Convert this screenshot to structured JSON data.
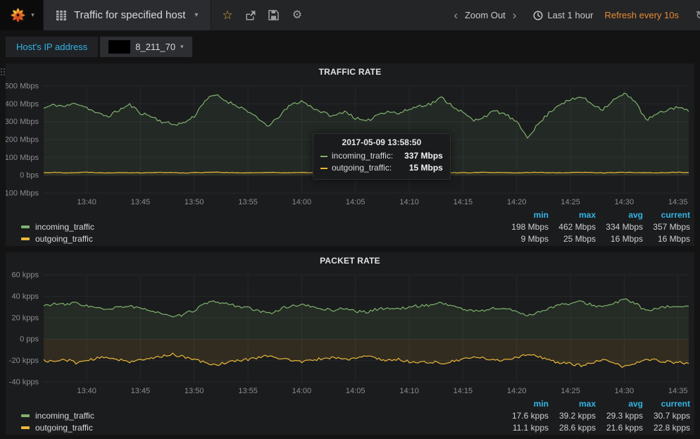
{
  "navbar": {
    "dashboard_title": "Traffic for specified host",
    "zoom_out": "Zoom Out",
    "time_range": "Last 1 hour",
    "refresh": "Refresh every 10s"
  },
  "variables": {
    "label": "Host's IP address",
    "value": "8_211_70"
  },
  "tooltip": {
    "time": "2017-05-09 13:58:50",
    "rows": [
      {
        "name": "incoming_traffic:",
        "value": "337 Mbps",
        "color": "#7eb26d"
      },
      {
        "name": "outgoing_traffic:",
        "value": "15 Mbps",
        "color": "#eab839"
      }
    ]
  },
  "colors": {
    "green": "#7eb26d",
    "yellow": "#eab839",
    "cyan": "#33b5e5",
    "orange": "#e78a32"
  },
  "chart_data": [
    {
      "type": "line",
      "title": "TRAFFIC RATE",
      "ylabel": "",
      "xlabel": "",
      "x_start": "13:36",
      "x_end": "14:36",
      "x_minutes_span": 60,
      "x_tick_minutes": [
        4,
        9,
        14,
        19,
        24,
        29,
        34,
        39,
        44,
        49,
        54,
        59
      ],
      "x_tick_labels": [
        "13:40",
        "13:45",
        "13:50",
        "13:55",
        "14:00",
        "14:05",
        "14:10",
        "14:15",
        "14:20",
        "14:25",
        "14:30",
        "14:35"
      ],
      "ylim": [
        -100,
        500
      ],
      "y_ticks": [
        500,
        400,
        300,
        200,
        100,
        0,
        -100
      ],
      "y_tick_labels": [
        "500 Mbps",
        "400 Mbps",
        "300 Mbps",
        "200 Mbps",
        "100 Mbps",
        "0 bps",
        "-100 Mbps"
      ],
      "grid": true,
      "series": [
        {
          "name": "incoming_traffic",
          "color": "#7eb26d",
          "fill_opacity": 0.09,
          "noise_amp": 9,
          "noise_seed": 11,
          "values": [
            375,
            395,
            385,
            405,
            380,
            345,
            330,
            365,
            395,
            350,
            330,
            300,
            285,
            292,
            330,
            420,
            450,
            415,
            390,
            360,
            310,
            275,
            337,
            395,
            415,
            380,
            350,
            330,
            360,
            320,
            298,
            340,
            360,
            345,
            370,
            390,
            400,
            435,
            390,
            350,
            305,
            330,
            360,
            340,
            295,
            215,
            285,
            350,
            400,
            420,
            440,
            400,
            370,
            420,
            455,
            420,
            308,
            340,
            365,
            385,
            357
          ]
        },
        {
          "name": "outgoing_traffic",
          "color": "#eab839",
          "fill_opacity": 0.06,
          "noise_amp": 1.6,
          "noise_seed": 22,
          "values": [
            15,
            16,
            14,
            15,
            17,
            15,
            13,
            16,
            15,
            14,
            15,
            16,
            15,
            13,
            15,
            16,
            18,
            15,
            14,
            13,
            15,
            16,
            15,
            14,
            15,
            15,
            16,
            14,
            15,
            16,
            15,
            14,
            15,
            17,
            15,
            15,
            14,
            16,
            15,
            14,
            15,
            16,
            15,
            14,
            13,
            15,
            16,
            15,
            14,
            15,
            17,
            15,
            14,
            15,
            16,
            15,
            15,
            14,
            15,
            16,
            16
          ]
        }
      ],
      "legend": {
        "headers": [
          "min",
          "max",
          "avg",
          "current"
        ],
        "rows": [
          {
            "name": "incoming_traffic",
            "color": "#7eb26d",
            "min": "198 Mbps",
            "max": "462 Mbps",
            "avg": "334 Mbps",
            "current": "357 Mbps"
          },
          {
            "name": "outgoing_traffic",
            "color": "#eab839",
            "min": "9 Mbps",
            "max": "25 Mbps",
            "avg": "16 Mbps",
            "current": "16 Mbps"
          }
        ]
      }
    },
    {
      "type": "line",
      "title": "PACKET RATE",
      "ylabel": "",
      "xlabel": "",
      "x_start": "13:36",
      "x_end": "14:36",
      "x_minutes_span": 60,
      "x_tick_minutes": [
        4,
        9,
        14,
        19,
        24,
        29,
        34,
        39,
        44,
        49,
        54,
        59
      ],
      "x_tick_labels": [
        "13:40",
        "13:45",
        "13:50",
        "13:55",
        "14:00",
        "14:05",
        "14:10",
        "14:15",
        "14:20",
        "14:25",
        "14:30",
        "14:35"
      ],
      "ylim": [
        -40,
        60
      ],
      "y_ticks": [
        60,
        40,
        20,
        0,
        -20,
        -40
      ],
      "y_tick_labels": [
        "60 kpps",
        "40 kpps",
        "20 kpps",
        "0 pps",
        "-20 kpps",
        "-40 kpps"
      ],
      "grid": true,
      "series": [
        {
          "name": "incoming_traffic",
          "color": "#7eb26d",
          "fill_opacity": 0.1,
          "noise_amp": 1.3,
          "noise_seed": 33,
          "values": [
            31,
            33,
            32,
            34,
            31,
            29,
            27,
            30,
            31,
            28,
            27,
            24,
            20,
            23,
            27,
            33,
            35,
            33,
            31,
            29,
            26,
            24,
            28,
            31,
            32,
            30,
            28,
            27,
            29,
            26,
            25,
            28,
            29,
            28,
            30,
            31,
            32,
            34,
            31,
            28,
            26,
            27,
            29,
            28,
            26,
            22,
            25,
            29,
            32,
            33,
            35,
            32,
            30,
            33,
            37,
            34,
            26,
            28,
            30,
            31,
            30.7
          ]
        },
        {
          "name": "outgoing_traffic",
          "color": "#eab839",
          "fill_opacity": 0.11,
          "noise_amp": 1.3,
          "noise_seed": 44,
          "values": [
            -20,
            -21,
            -19,
            -22,
            -20,
            -18,
            -17,
            -19,
            -21,
            -20,
            -18,
            -16,
            -14,
            -17,
            -19,
            -22,
            -24,
            -22,
            -20,
            -19,
            -17,
            -15,
            -18,
            -20,
            -21,
            -20,
            -18,
            -17,
            -19,
            -18,
            -16,
            -18,
            -20,
            -19,
            -21,
            -22,
            -21,
            -23,
            -21,
            -19,
            -17,
            -18,
            -20,
            -19,
            -17,
            -14,
            -16,
            -20,
            -22,
            -23,
            -25,
            -22,
            -20,
            -22,
            -26,
            -23,
            -19,
            -20,
            -21,
            -22,
            -22.8
          ]
        }
      ],
      "legend": {
        "headers": [
          "min",
          "max",
          "avg",
          "current"
        ],
        "rows": [
          {
            "name": "incoming_traffic",
            "color": "#7eb26d",
            "min": "17.6 kpps",
            "max": "39.2 kpps",
            "avg": "29.3 kpps",
            "current": "30.7 kpps"
          },
          {
            "name": "outgoing_traffic",
            "color": "#eab839",
            "min": "11.1 kpps",
            "max": "28.6 kpps",
            "avg": "21.6 kpps",
            "current": "22.8 kpps"
          }
        ]
      }
    }
  ]
}
